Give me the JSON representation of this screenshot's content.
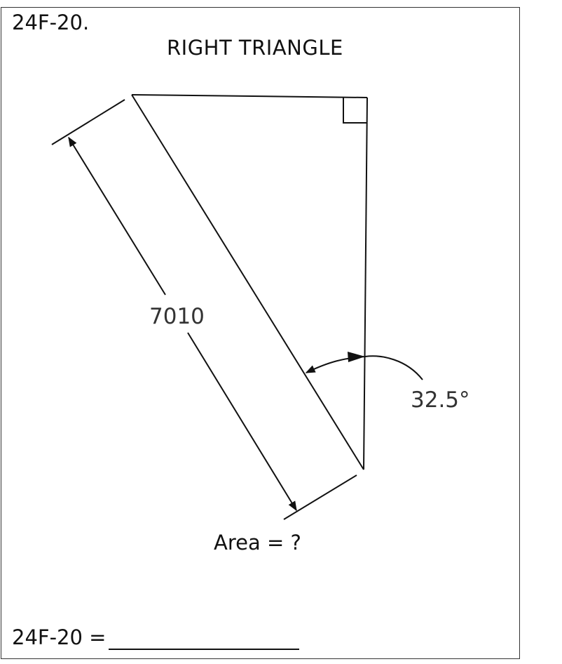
{
  "problem": {
    "id": "24F-20.",
    "title": "RIGHT TRIANGLE",
    "question": "Area = ?",
    "answer_prompt": "24F-20 ="
  },
  "figure": {
    "hypotenuse_label": "7010",
    "angle_label": "32.5°"
  },
  "colors": {
    "line": "#111111",
    "label": "#333333"
  }
}
